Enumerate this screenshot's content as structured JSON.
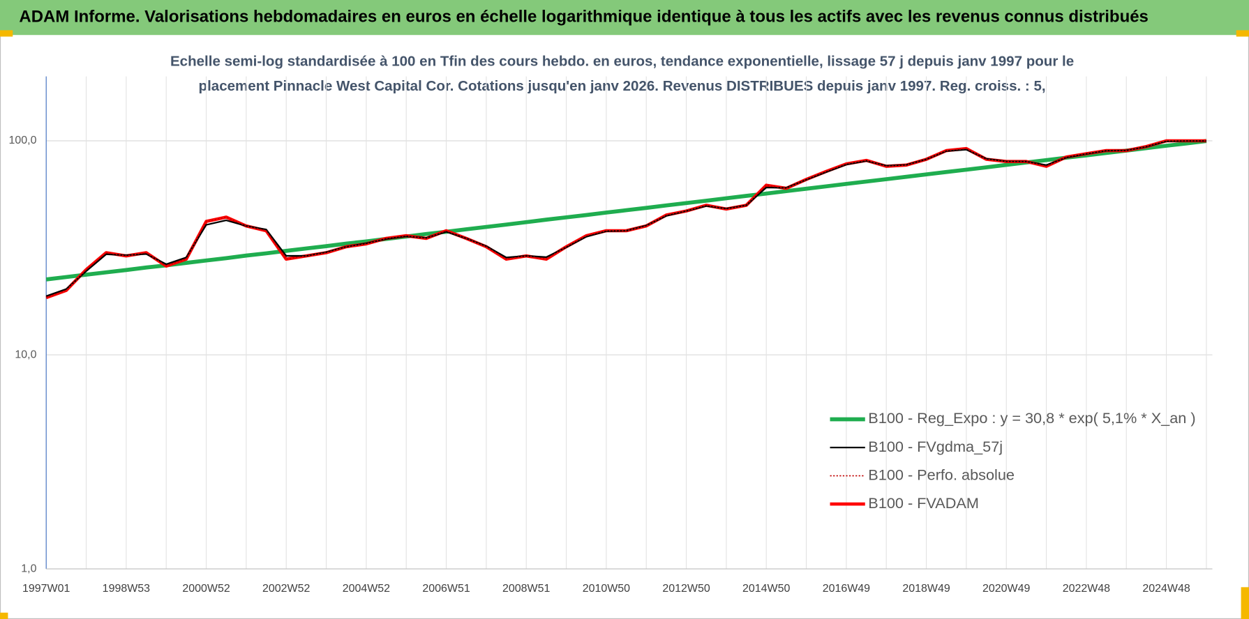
{
  "chart_data": {
    "type": "line",
    "title": "ADAM Informe. Valorisations hebdomadaires en euros en échelle logarithmique identique à tous les actifs avec les revenus connus distribués",
    "subtitle": [
      "Echelle semi-log standardisée à 100 en Tfin des cours hebdo. en euros, tendance exponentielle, lissage 57 j depuis janv 1997 pour le",
      "placement Pinnacle West Capital Cor. Cotations jusqu'en janv 2026. Revenus DISTRIBUES depuis janv 1997. Reg. croiss. : 5,"
    ],
    "categories": [
      "1997W01",
      null,
      null,
      null,
      "1998W53",
      null,
      null,
      null,
      "2000W52",
      null,
      null,
      null,
      "2002W52",
      null,
      null,
      null,
      "2004W52",
      null,
      null,
      null,
      "2006W51",
      null,
      null,
      null,
      "2008W51",
      null,
      null,
      null,
      "2010W50",
      null,
      null,
      null,
      "2012W50",
      null,
      null,
      null,
      "2014W50",
      null,
      null,
      null,
      "2016W49",
      null,
      null,
      null,
      "2018W49",
      null,
      null,
      null,
      "2020W49",
      null,
      null,
      null,
      "2022W48",
      null,
      null,
      null,
      "2024W48",
      null,
      null
    ],
    "log_scale": true,
    "ylim": [
      1,
      200
    ],
    "yticks": [
      {
        "value": 1,
        "label": "1,0"
      },
      {
        "value": 10,
        "label": "10,0"
      },
      {
        "value": 100,
        "label": "100,0"
      }
    ],
    "grid": true,
    "legend": "lower right",
    "series": [
      {
        "name": "B100 - Reg_Expo : y = 30,8 * exp( 5,1% *  X_an )",
        "color": "#1fad4f",
        "line_width": 5,
        "style": "solid",
        "values": [
          22.5,
          23.1,
          23.7,
          24.3,
          24.9,
          25.6,
          26.2,
          26.9,
          27.6,
          28.3,
          29.1,
          29.8,
          30.6,
          31.4,
          32.2,
          33.1,
          33.9,
          34.8,
          35.7,
          36.7,
          37.6,
          38.6,
          39.6,
          40.6,
          41.7,
          42.8,
          43.9,
          45.0,
          46.2,
          47.4,
          48.6,
          49.9,
          51.2,
          52.5,
          53.9,
          55.3,
          56.7,
          58.2,
          59.7,
          61.3,
          62.9,
          64.5,
          66.2,
          67.9,
          69.7,
          71.5,
          73.3,
          75.2,
          77.2,
          79.2,
          81.3,
          83.4,
          85.5,
          87.8,
          90.0,
          92.4,
          94.8,
          97.2,
          99.8
        ]
      },
      {
        "name": "B100 - FVgdma_57j",
        "color": "#000000",
        "line_width": 2,
        "style": "solid",
        "values": [
          18.8,
          20.3,
          24.6,
          29.5,
          29.2,
          29.6,
          26.5,
          28.5,
          40.5,
          42.5,
          40.0,
          38.5,
          29.0,
          29.0,
          30.2,
          32.0,
          33.2,
          34.8,
          35.8,
          35.2,
          37.6,
          35.0,
          32.2,
          28.5,
          29.0,
          28.6,
          31.8,
          35.6,
          37.8,
          38.0,
          40.2,
          44.6,
          47.0,
          49.6,
          48.2,
          50.0,
          60.5,
          60.3,
          65.8,
          71.5,
          77.5,
          80.5,
          76.5,
          77.2,
          82.0,
          89.5,
          91.0,
          82.5,
          80.2,
          80.0,
          77.0,
          83.5,
          86.8,
          89.8,
          90.2,
          93.8,
          99.5,
          99.8,
          99.8
        ]
      },
      {
        "name": "B100 - Perfo. absolue",
        "color": "#c00000",
        "line_width": 1.5,
        "style": "dotted",
        "values": [
          18.5,
          20,
          25,
          30,
          29,
          30,
          26,
          28,
          42,
          44,
          40,
          38,
          28,
          29,
          30,
          32,
          33,
          35,
          36,
          35,
          38,
          35,
          32,
          28,
          29,
          28,
          32,
          36,
          38,
          38,
          40,
          45,
          47,
          50,
          48,
          50,
          62,
          60,
          66,
          72,
          78,
          81,
          76,
          77,
          82,
          90,
          92,
          82,
          80,
          80,
          76,
          84,
          87,
          90,
          90,
          94,
          100,
          100,
          100
        ]
      },
      {
        "name": "B100 - FVADAM",
        "color": "#ff0000",
        "line_width": 4,
        "style": "solid",
        "values": [
          18.5,
          20,
          25,
          30,
          29,
          30,
          26,
          28,
          42,
          44,
          40,
          38,
          28,
          29,
          30,
          32,
          33,
          35,
          36,
          35,
          38,
          35,
          32,
          28,
          29,
          28,
          32,
          36,
          38,
          38,
          40,
          45,
          47,
          50,
          48,
          50,
          62,
          60,
          66,
          72,
          78,
          81,
          76,
          77,
          82,
          90,
          92,
          82,
          80,
          80,
          76,
          84,
          87,
          90,
          90,
          94,
          100,
          100,
          100
        ]
      }
    ]
  }
}
